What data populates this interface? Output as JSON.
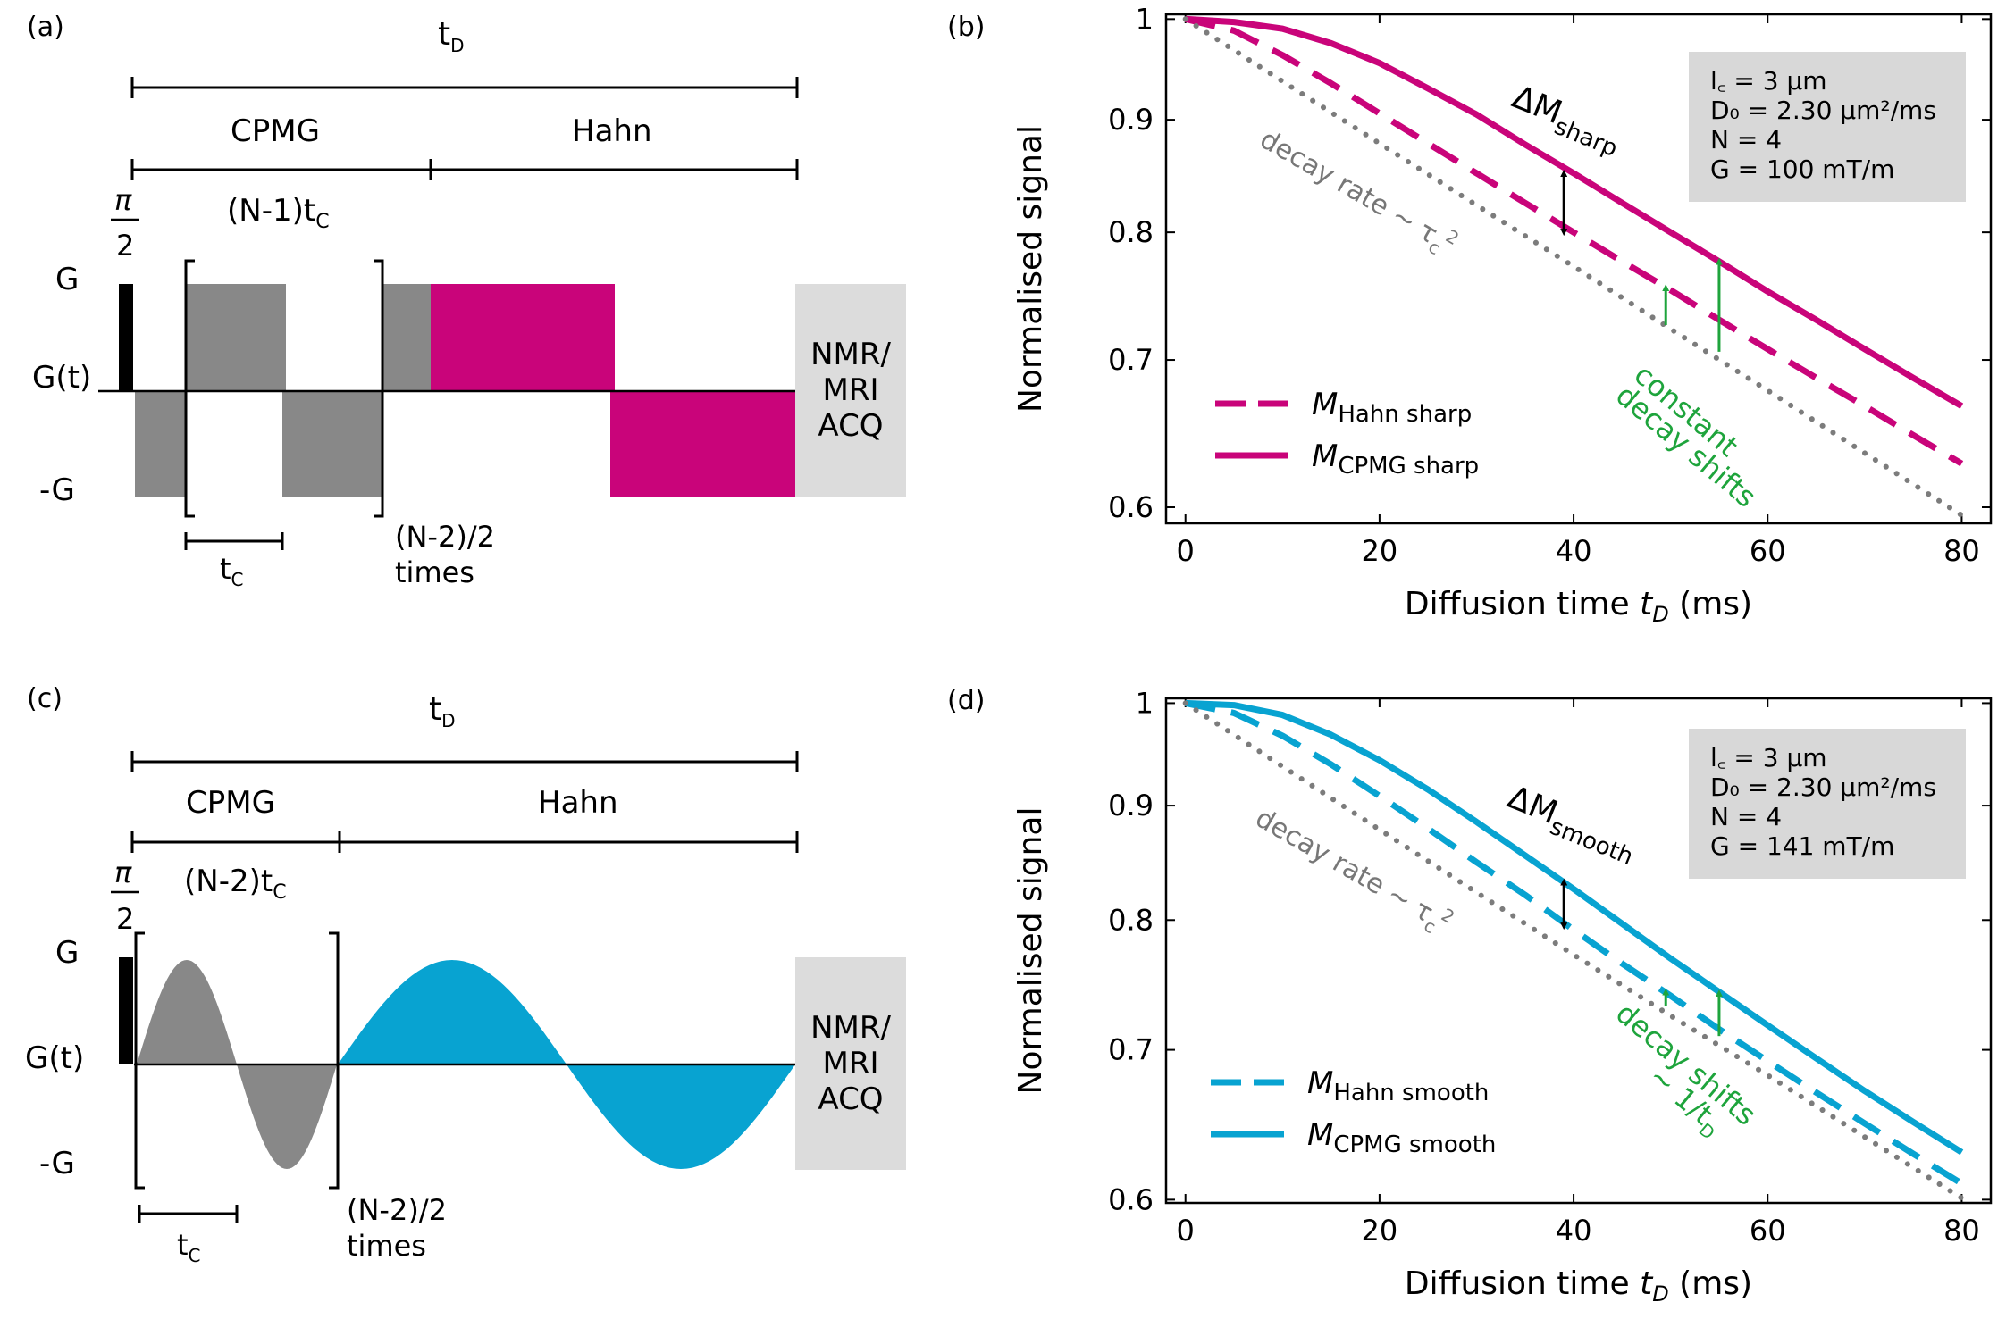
{
  "panel_labels": {
    "a": "(a)",
    "b": "(b)",
    "c": "(c)",
    "d": "(d)"
  },
  "colors": {
    "magenta": "#c9047a",
    "cyan": "#08a3d1",
    "gray_pulse": "#888888",
    "dotted": "#7c7c7c",
    "green": "#1ea43c",
    "acq_box": "#dcdcdc",
    "info_box": "#d8d8d8"
  },
  "seq_a": {
    "td": "t",
    "td_sub": "D",
    "cpmg": "CPMG",
    "hahn": "Hahn",
    "n1tc": "(N-1)t",
    "n1tc_sub": "C",
    "pi": "π",
    "two": "2",
    "g": "G",
    "gt": "G(t)",
    "neg_g": "-G",
    "tc": "t",
    "tc_sub": "C",
    "repeat_1": "(N-2)/2",
    "repeat_2": "times",
    "acq_1": "NMR/",
    "acq_2": "MRI",
    "acq_3": "ACQ"
  },
  "seq_c": {
    "td": "t",
    "td_sub": "D",
    "cpmg": "CPMG",
    "hahn": "Hahn",
    "n2tc": "(N-2)t",
    "n2tc_sub": "C",
    "pi": "π",
    "two": "2",
    "g": "G",
    "gt": "G(t)",
    "neg_g": "-G",
    "tc": "t",
    "tc_sub": "C",
    "repeat_1": "(N-2)/2",
    "repeat_2": "times",
    "acq_1": "NMR/",
    "acq_2": "MRI",
    "acq_3": "ACQ"
  },
  "chart_data": [
    {
      "type": "line",
      "panel": "(b)",
      "xlabel": "Diffusion time ",
      "xlabel_var": "t",
      "xlabel_sub": "D",
      "xlabel_unit": " (ms)",
      "ylabel": "Normalised signal",
      "xlim": [
        -2,
        83
      ],
      "ylim": [
        0.59,
        1.005
      ],
      "yscale": "log",
      "xticks": [
        "0",
        "20",
        "40",
        "60",
        "80"
      ],
      "xtick_values": [
        0,
        20,
        40,
        60,
        80
      ],
      "yticks": [
        "0.6",
        "0.7",
        "0.8",
        "0.9",
        "1"
      ],
      "ytick_values": [
        0.6,
        0.7,
        0.8,
        0.9,
        1.0
      ],
      "series": [
        {
          "name": "CPMG sharp",
          "style": "solid",
          "x": [
            0,
            5,
            10,
            15,
            20,
            25,
            30,
            35,
            40,
            45,
            50,
            55,
            60,
            65,
            70,
            75,
            80
          ],
          "values": [
            1.0,
            0.997,
            0.99,
            0.975,
            0.955,
            0.93,
            0.905,
            0.877,
            0.851,
            0.825,
            0.8,
            0.776,
            0.752,
            0.73,
            0.708,
            0.687,
            0.667
          ]
        },
        {
          "name": "Hahn sharp",
          "style": "dashed",
          "x": [
            0,
            5,
            10,
            15,
            20,
            25,
            30,
            35,
            40,
            45,
            50,
            55,
            60,
            65,
            70,
            75,
            80
          ],
          "values": [
            1.0,
            0.988,
            0.963,
            0.935,
            0.906,
            0.878,
            0.851,
            0.825,
            0.8,
            0.776,
            0.753,
            0.73,
            0.708,
            0.687,
            0.667,
            0.647,
            0.628
          ]
        },
        {
          "name": "Free decay",
          "style": "dotted",
          "x": [
            0,
            10,
            20,
            30,
            40,
            50,
            60,
            70,
            80
          ],
          "values": [
            1.0,
            0.937,
            0.878,
            0.823,
            0.772,
            0.723,
            0.678,
            0.635,
            0.595
          ]
        }
      ],
      "legend": [
        {
          "label": "M",
          "sub": "Hahn sharp",
          "style": "dashed"
        },
        {
          "label": "M",
          "sub": "CPMG sharp",
          "style": "solid"
        }
      ],
      "legend_position": "bottom-left",
      "infobox": [
        "l꜀ = 3 µm",
        "D₀ = 2.30 µm²/ms",
        "N = 4",
        "G = 100 mT/m"
      ],
      "annotations": {
        "delta_m": "ΔM",
        "delta_m_sub": "sharp",
        "decay_rate": "decay rate ~ τ",
        "decay_rate_sub": "c",
        "decay_rate_sup": "2",
        "green_1": "constant",
        "green_2": "decay shifts"
      },
      "arrows": [
        {
          "x": 39,
          "from": 0.8,
          "to": 0.851,
          "color": "black"
        },
        {
          "x": 49.5,
          "from": 0.726,
          "to": 0.755,
          "color": "green"
        },
        {
          "x": 55,
          "from": 0.706,
          "to": 0.776,
          "color": "green"
        }
      ]
    },
    {
      "type": "line",
      "panel": "(d)",
      "xlabel": "Diffusion time ",
      "xlabel_var": "t",
      "xlabel_sub": "D",
      "xlabel_unit": " (ms)",
      "ylabel": "Normalised signal",
      "xlim": [
        -2,
        83
      ],
      "ylim": [
        0.598,
        1.005
      ],
      "yscale": "log",
      "xticks": [
        "0",
        "20",
        "40",
        "60",
        "80"
      ],
      "xtick_values": [
        0,
        20,
        40,
        60,
        80
      ],
      "yticks": [
        "0.6",
        "0.7",
        "0.8",
        "0.9",
        "1"
      ],
      "ytick_values": [
        0.6,
        0.7,
        0.8,
        0.9,
        1.0
      ],
      "series": [
        {
          "name": "CPMG smooth",
          "style": "solid",
          "x": [
            0,
            5,
            10,
            15,
            20,
            25,
            30,
            35,
            40,
            45,
            50,
            55,
            60,
            65,
            70,
            75,
            80
          ],
          "values": [
            1.0,
            0.998,
            0.988,
            0.968,
            0.943,
            0.915,
            0.885,
            0.855,
            0.826,
            0.797,
            0.769,
            0.743,
            0.718,
            0.694,
            0.671,
            0.65,
            0.63
          ]
        },
        {
          "name": "Hahn smooth",
          "style": "dashed",
          "x": [
            0,
            5,
            10,
            15,
            20,
            25,
            30,
            35,
            40,
            45,
            50,
            55,
            60,
            65,
            70,
            75,
            80
          ],
          "values": [
            1.0,
            0.99,
            0.967,
            0.939,
            0.909,
            0.879,
            0.849,
            0.821,
            0.792,
            0.765,
            0.74,
            0.715,
            0.692,
            0.67,
            0.649,
            0.629,
            0.61
          ]
        },
        {
          "name": "Free decay",
          "style": "dotted",
          "x": [
            0,
            10,
            20,
            30,
            40,
            50,
            60,
            70,
            80
          ],
          "values": [
            1.0,
            0.937,
            0.878,
            0.823,
            0.772,
            0.725,
            0.682,
            0.64,
            0.601
          ]
        }
      ],
      "legend": [
        {
          "label": "M",
          "sub": "Hahn smooth",
          "style": "dashed"
        },
        {
          "label": "M",
          "sub": "CPMG smooth",
          "style": "solid"
        }
      ],
      "legend_position": "bottom-left",
      "infobox": [
        "l꜀ = 3 µm",
        "D₀ = 2.30 µm²/ms",
        "N = 4",
        "G = 141 mT/m"
      ],
      "annotations": {
        "delta_m": "ΔM",
        "delta_m_sub": "smooth",
        "decay_rate": "decay rate ~ τ",
        "decay_rate_sub": "c",
        "decay_rate_sup": "2",
        "green_1": "decay shifts",
        "green_2": "~ 1/t",
        "green_2_sub": "D"
      },
      "arrows": [
        {
          "x": 39,
          "from": 0.795,
          "to": 0.832,
          "color": "black"
        },
        {
          "x": 49.5,
          "from": 0.732,
          "to": 0.743,
          "color": "green"
        },
        {
          "x": 55,
          "from": 0.71,
          "to": 0.742,
          "color": "green"
        }
      ]
    }
  ]
}
